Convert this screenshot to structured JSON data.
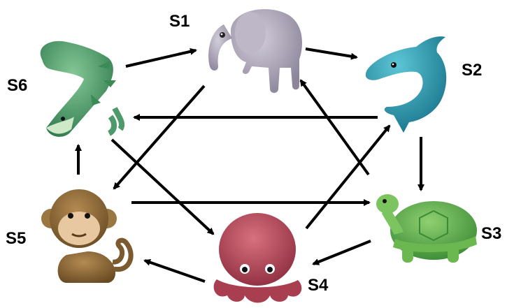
{
  "nodes": [
    {
      "id": "S1",
      "label": "S1",
      "animal": "elephant-icon"
    },
    {
      "id": "S2",
      "label": "S2",
      "animal": "dolphin-icon"
    },
    {
      "id": "S3",
      "label": "S3",
      "animal": "turtle-icon"
    },
    {
      "id": "S4",
      "label": "S4",
      "animal": "octopus-icon"
    },
    {
      "id": "S5",
      "label": "S5",
      "animal": "monkey-icon"
    },
    {
      "id": "S6",
      "label": "S6",
      "animal": "crocodile-icon"
    }
  ],
  "edges": [
    {
      "from": "S6",
      "to": "S1"
    },
    {
      "from": "S1",
      "to": "S2"
    },
    {
      "from": "S2",
      "to": "S3"
    },
    {
      "from": "S3",
      "to": "S4"
    },
    {
      "from": "S4",
      "to": "S5"
    },
    {
      "from": "S5",
      "to": "S6"
    },
    {
      "from": "S2",
      "to": "S6"
    },
    {
      "from": "S5",
      "to": "S3"
    },
    {
      "from": "S1",
      "to": "S5"
    },
    {
      "from": "S6",
      "to": "S4"
    },
    {
      "from": "S4",
      "to": "S2"
    },
    {
      "from": "S3",
      "to": "S1"
    }
  ],
  "colors": {
    "elephant": "#a8a2b4",
    "dolphin": "#2c9ab0",
    "turtle": "#5aa84a",
    "octopus": "#b8485a",
    "monkey": "#8a6a3a",
    "crocodile": "#4e9a6a"
  }
}
